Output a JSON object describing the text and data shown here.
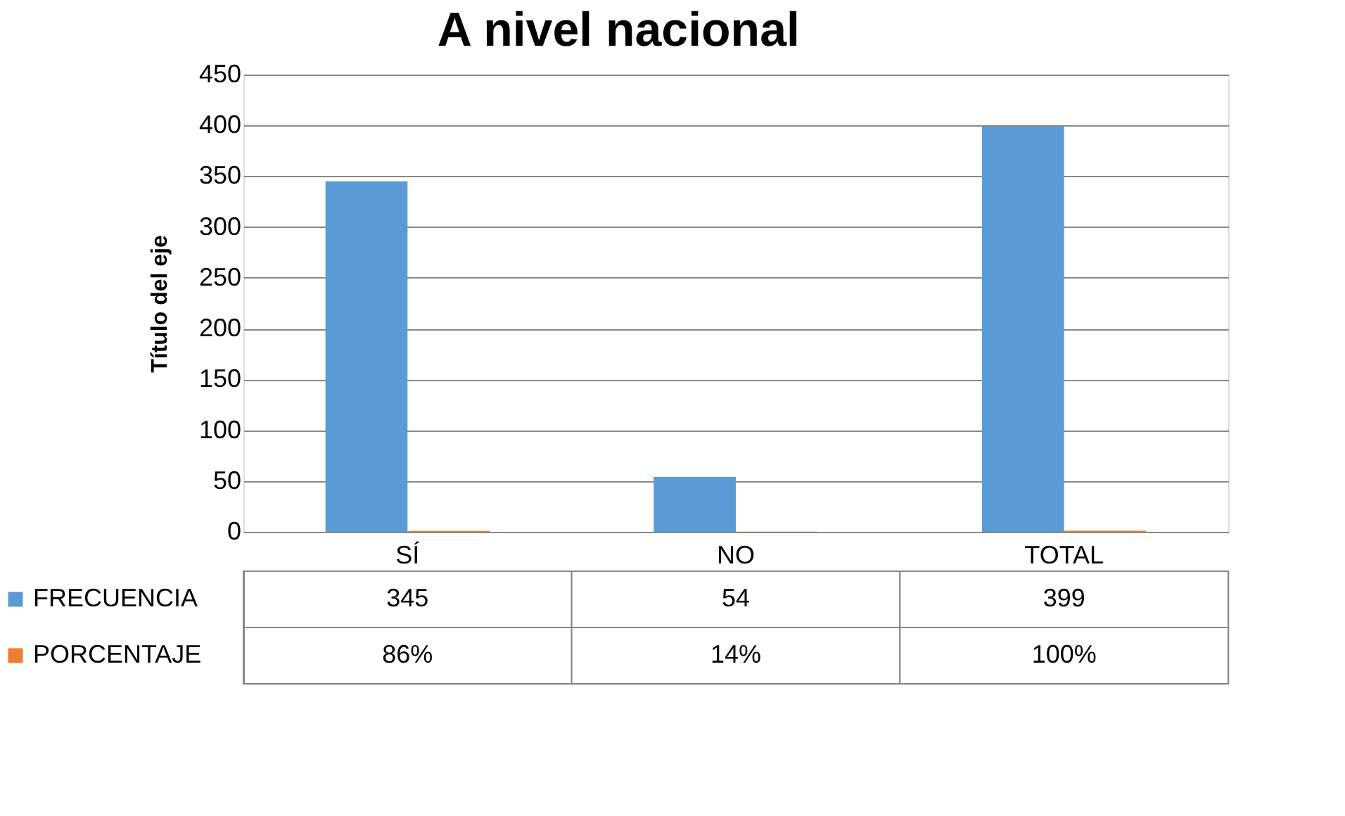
{
  "chart_data": {
    "type": "bar",
    "title": "A nivel nacional",
    "ylabel": "Título del eje",
    "categories": [
      "SÍ",
      "NO",
      "TOTAL"
    ],
    "series": [
      {
        "name": "FRECUENCIA",
        "color": "#5b9bd5",
        "values": [
          345,
          54,
          399
        ],
        "value_labels": [
          "345",
          "54",
          "399"
        ]
      },
      {
        "name": "PORCENTAJE",
        "color": "#ed7d31",
        "values": [
          0.86,
          0.14,
          1.0
        ],
        "value_labels": [
          "86%",
          "14%",
          "100%"
        ]
      }
    ],
    "ylim": [
      0,
      450
    ],
    "yticks": [
      0,
      50,
      100,
      150,
      200,
      250,
      300,
      350,
      400,
      450
    ],
    "grid": "y",
    "legend": "bottom"
  }
}
